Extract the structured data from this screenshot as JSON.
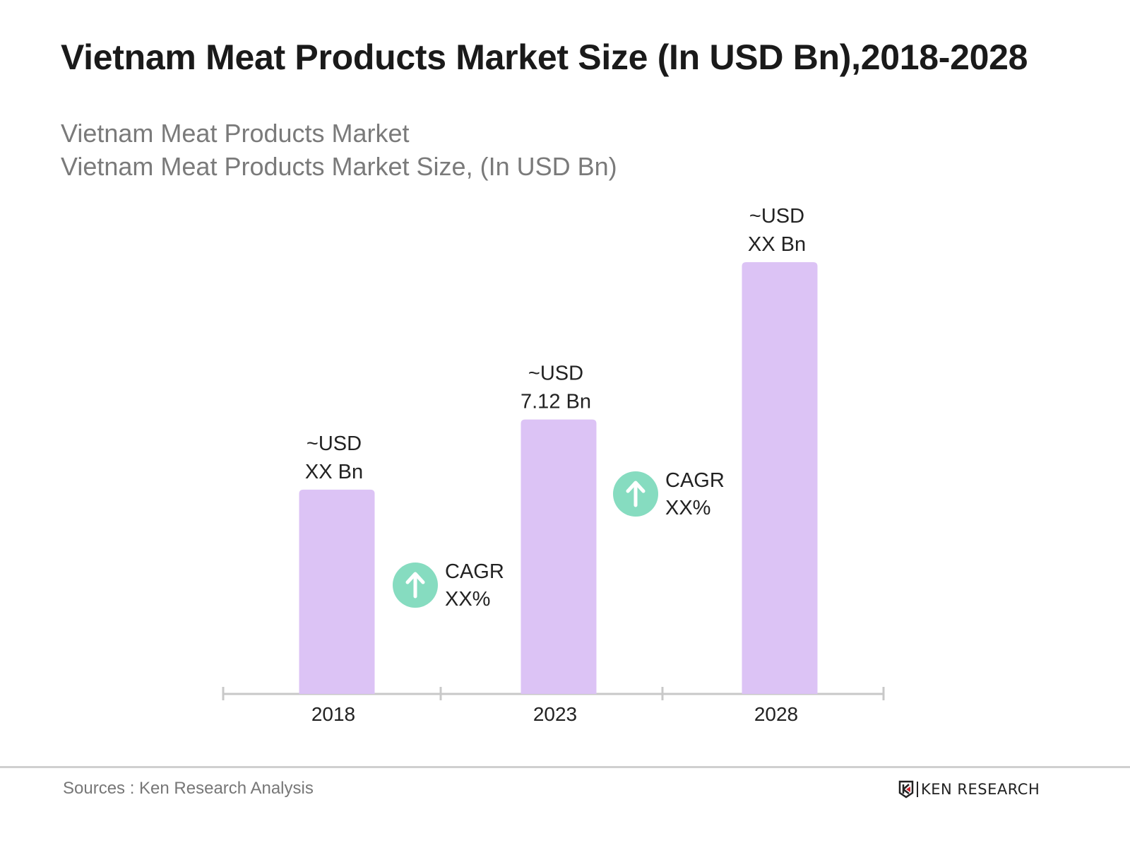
{
  "title": "Vietnam Meat Products Market Size (In USD Bn),2018-2028",
  "subtitle_line1": "Vietnam Meat Products Market",
  "subtitle_line2": "Vietnam Meat Products Market Size, (In USD Bn)",
  "chart_data": {
    "type": "bar",
    "categories": [
      "2018",
      "2023",
      "2028"
    ],
    "values": [
      5.3,
      7.12,
      11.2
    ],
    "data_labels": [
      [
        "~USD",
        "XX Bn"
      ],
      [
        "~USD",
        "7.12 Bn"
      ],
      [
        "~USD",
        "XX Bn"
      ]
    ],
    "cagr_annotations": [
      {
        "label": "CAGR",
        "value": "XX%",
        "between": [
          "2018",
          "2023"
        ]
      },
      {
        "label": "CAGR",
        "value": "XX%",
        "between": [
          "2023",
          "2028"
        ]
      }
    ],
    "bar_color": "#dcc3f5",
    "cagr_icon_color": "#86dcc0",
    "grid": false,
    "ylim": [
      0,
      11.2
    ]
  },
  "footer": {
    "source": "Sources : Ken Research Analysis",
    "logo_text": "KEN RESEARCH"
  }
}
